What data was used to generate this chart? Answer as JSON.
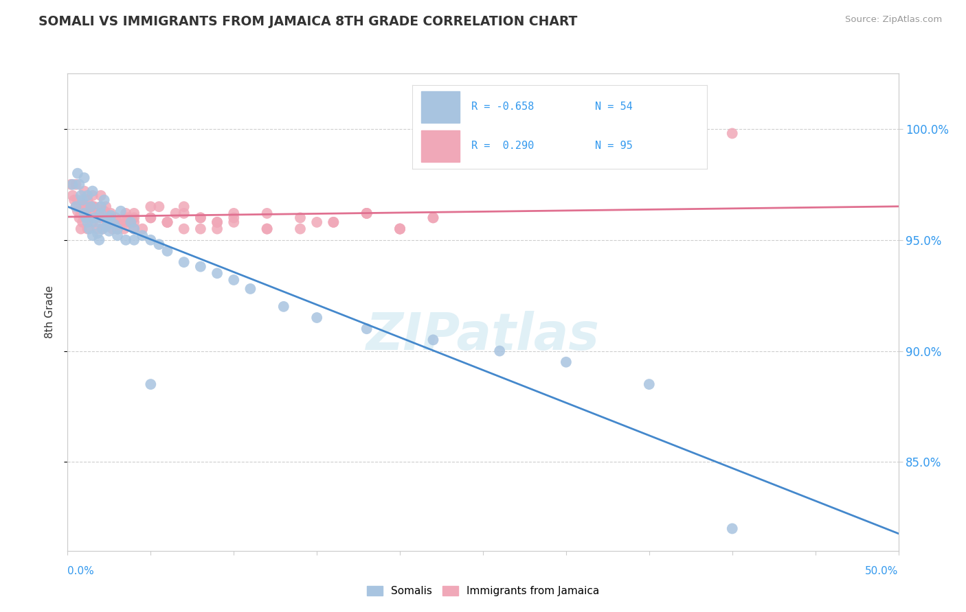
{
  "title": "SOMALI VS IMMIGRANTS FROM JAMAICA 8TH GRADE CORRELATION CHART",
  "source": "Source: ZipAtlas.com",
  "ylabel": "8th Grade",
  "xlim": [
    0.0,
    50.0
  ],
  "ylim": [
    81.0,
    102.5
  ],
  "yticks": [
    85.0,
    90.0,
    95.0,
    100.0
  ],
  "xticks": [
    0.0,
    5.0,
    10.0,
    15.0,
    20.0,
    25.0,
    30.0,
    35.0,
    40.0,
    45.0,
    50.0
  ],
  "somali_R": -0.658,
  "somali_N": 54,
  "jamaica_R": 0.29,
  "jamaica_N": 95,
  "somali_color": "#a8c4e0",
  "jamaica_color": "#f0a8b8",
  "somali_line_color": "#4488cc",
  "jamaica_line_color": "#e07090",
  "watermark": "ZIPatlas",
  "background_color": "#ffffff",
  "grid_color": "#c8c8c8",
  "legend_label_somali": "Somalis",
  "legend_label_jamaica": "Immigrants from Jamaica",
  "somali_scatter_x": [
    0.3,
    0.5,
    0.8,
    0.9,
    1.0,
    1.1,
    1.2,
    1.3,
    1.4,
    1.5,
    1.6,
    1.7,
    1.8,
    1.9,
    2.0,
    2.1,
    2.2,
    2.3,
    2.4,
    2.5,
    2.6,
    2.8,
    3.0,
    3.2,
    3.5,
    3.8,
    4.0,
    4.5,
    5.0,
    5.5,
    6.0,
    7.0,
    8.0,
    9.0,
    10.0,
    11.0,
    13.0,
    15.0,
    18.0,
    22.0,
    26.0,
    30.0,
    35.0,
    40.0,
    0.6,
    1.0,
    1.5,
    2.0,
    2.5,
    3.0,
    4.0,
    5.0,
    0.7,
    1.2
  ],
  "somali_scatter_y": [
    97.5,
    96.5,
    97.0,
    96.8,
    96.2,
    96.0,
    95.8,
    95.5,
    96.5,
    95.2,
    96.0,
    95.8,
    95.3,
    95.0,
    96.2,
    95.5,
    96.8,
    95.6,
    95.9,
    95.4,
    96.1,
    95.7,
    95.2,
    96.3,
    95.0,
    95.8,
    95.5,
    95.2,
    95.0,
    94.8,
    94.5,
    94.0,
    93.8,
    93.5,
    93.2,
    92.8,
    92.0,
    91.5,
    91.0,
    90.5,
    90.0,
    89.5,
    88.5,
    82.0,
    98.0,
    97.8,
    97.2,
    96.5,
    96.0,
    95.5,
    95.0,
    88.5,
    97.5,
    97.0
  ],
  "jamaica_scatter_x": [
    0.2,
    0.4,
    0.5,
    0.6,
    0.7,
    0.8,
    0.9,
    1.0,
    1.1,
    1.2,
    1.3,
    1.4,
    1.5,
    1.6,
    1.7,
    1.8,
    1.9,
    2.0,
    2.1,
    2.2,
    2.3,
    2.4,
    2.5,
    2.6,
    2.7,
    2.8,
    2.9,
    3.0,
    3.2,
    3.4,
    3.6,
    3.8,
    4.0,
    4.5,
    5.0,
    5.5,
    6.0,
    6.5,
    7.0,
    8.0,
    9.0,
    10.0,
    12.0,
    14.0,
    16.0,
    18.0,
    20.0,
    22.0,
    0.3,
    0.6,
    0.8,
    1.0,
    1.2,
    1.5,
    2.0,
    2.5,
    3.0,
    3.5,
    4.0,
    5.0,
    6.0,
    7.0,
    8.0,
    9.0,
    10.0,
    12.0,
    15.0,
    18.0,
    20.0,
    1.0,
    1.5,
    2.0,
    2.5,
    3.0,
    3.5,
    4.0,
    5.0,
    6.0,
    7.0,
    8.0,
    9.0,
    10.0,
    12.0,
    14.0,
    16.0,
    18.0,
    20.0,
    22.0,
    0.5,
    1.0,
    1.5,
    2.0,
    3.0,
    4.0,
    40.0
  ],
  "jamaica_scatter_y": [
    97.5,
    96.8,
    96.5,
    96.3,
    96.0,
    96.2,
    95.8,
    96.5,
    96.3,
    95.5,
    96.0,
    96.2,
    95.8,
    96.5,
    96.0,
    95.5,
    96.2,
    96.0,
    95.5,
    96.3,
    96.5,
    95.8,
    96.0,
    96.2,
    95.5,
    95.8,
    96.0,
    95.5,
    95.8,
    95.5,
    96.0,
    95.8,
    96.2,
    95.5,
    96.0,
    96.5,
    95.8,
    96.2,
    95.5,
    96.0,
    95.8,
    96.2,
    95.5,
    96.0,
    95.8,
    96.2,
    95.5,
    96.0,
    97.0,
    96.8,
    95.5,
    97.2,
    96.8,
    96.5,
    96.0,
    95.8,
    95.5,
    95.8,
    96.0,
    96.5,
    95.8,
    96.2,
    95.5,
    95.8,
    96.0,
    95.5,
    95.8,
    96.2,
    95.5,
    96.5,
    97.0,
    96.5,
    96.0,
    95.8,
    96.2,
    95.5,
    96.0,
    95.8,
    96.5,
    96.0,
    95.5,
    95.8,
    96.2,
    95.5,
    95.8,
    96.2,
    95.5,
    96.0,
    97.5,
    96.8,
    96.5,
    97.0,
    95.5,
    95.8,
    99.8
  ]
}
